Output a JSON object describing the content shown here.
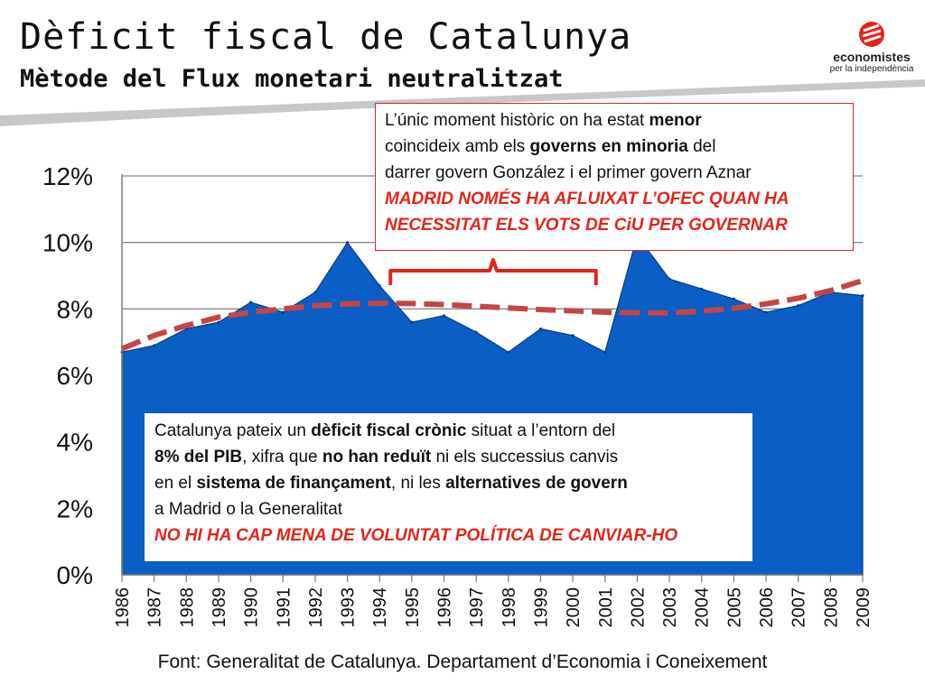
{
  "header": {
    "title": "Dèficit fiscal de Catalunya",
    "subtitle": "Mètode del Flux monetari neutralitzat"
  },
  "logo": {
    "line1": "economistes",
    "line2": "per la independència",
    "icon": "economistes-logo-icon",
    "color": "#e3241b"
  },
  "callout_top": {
    "l1_a": "L’únic moment històric on ha estat ",
    "l1_b": "menor",
    "l2_a": "coincideix amb els ",
    "l2_b": "governs en minoria",
    "l2_c": " del",
    "l3": "darrer govern González i el primer govern Aznar",
    "emph1": "MADRID NOMÉS HA AFLUIXAT L’OFEC QUAN HA",
    "emph2": "NECESSITAT ELS VOTS DE CiU PER GOVERNAR"
  },
  "callout_bottom": {
    "l1_a": "Catalunya pateix un ",
    "l1_b": "dèficit fiscal crònic",
    "l1_c": " situat a l’entorn del",
    "l2_a": "8% del PIB",
    "l2_b": ", xifra que ",
    "l2_c": "no han reduït",
    "l2_d": " ni els successius canvis",
    "l3_a": "en el ",
    "l3_b": "sistema de finançament",
    "l3_c": ", ni les ",
    "l3_d": "alternatives de govern",
    "l4": "a Madrid o la Generalitat",
    "emph": "NO HI HA CAP MENA DE VOLUNTAT POLÍTICA DE CANVIAR-HO"
  },
  "source": "Font: Generalitat de Catalunya. Departament d’Economia i Coneixement",
  "chart_data": {
    "type": "area",
    "categories": [
      "1986",
      "1987",
      "1988",
      "1989",
      "1990",
      "1991",
      "1992",
      "1993",
      "1994",
      "1995",
      "1996",
      "1997",
      "1998",
      "1999",
      "2000",
      "2001",
      "2002",
      "2003",
      "2004",
      "2005",
      "2006",
      "2007",
      "2008",
      "2009"
    ],
    "series": [
      {
        "values": [
          6.7,
          6.9,
          7.4,
          7.6,
          8.2,
          7.9,
          8.5,
          10.0,
          8.7,
          7.6,
          7.8,
          7.3,
          6.7,
          7.4,
          7.2,
          6.7,
          10.2,
          8.9,
          8.6,
          8.3,
          7.9,
          8.1,
          8.5,
          8.4
        ],
        "color": "#0a5ec4"
      },
      {
        "values": [
          6.8,
          7.2,
          7.5,
          7.75,
          7.9,
          8.0,
          8.1,
          8.15,
          8.17,
          8.16,
          8.13,
          8.08,
          8.03,
          7.98,
          7.94,
          7.9,
          7.88,
          7.88,
          7.93,
          8.02,
          8.15,
          8.32,
          8.55,
          8.85
        ],
        "color": "#c44545",
        "style": "dashed-trend"
      }
    ],
    "yticks": [
      "0%",
      "2%",
      "4%",
      "6%",
      "8%",
      "10%",
      "12%"
    ],
    "ylim": [
      0,
      12
    ],
    "grid": true,
    "bracket": {
      "from": "1994",
      "to": "2001",
      "color": "#e3241b"
    }
  }
}
